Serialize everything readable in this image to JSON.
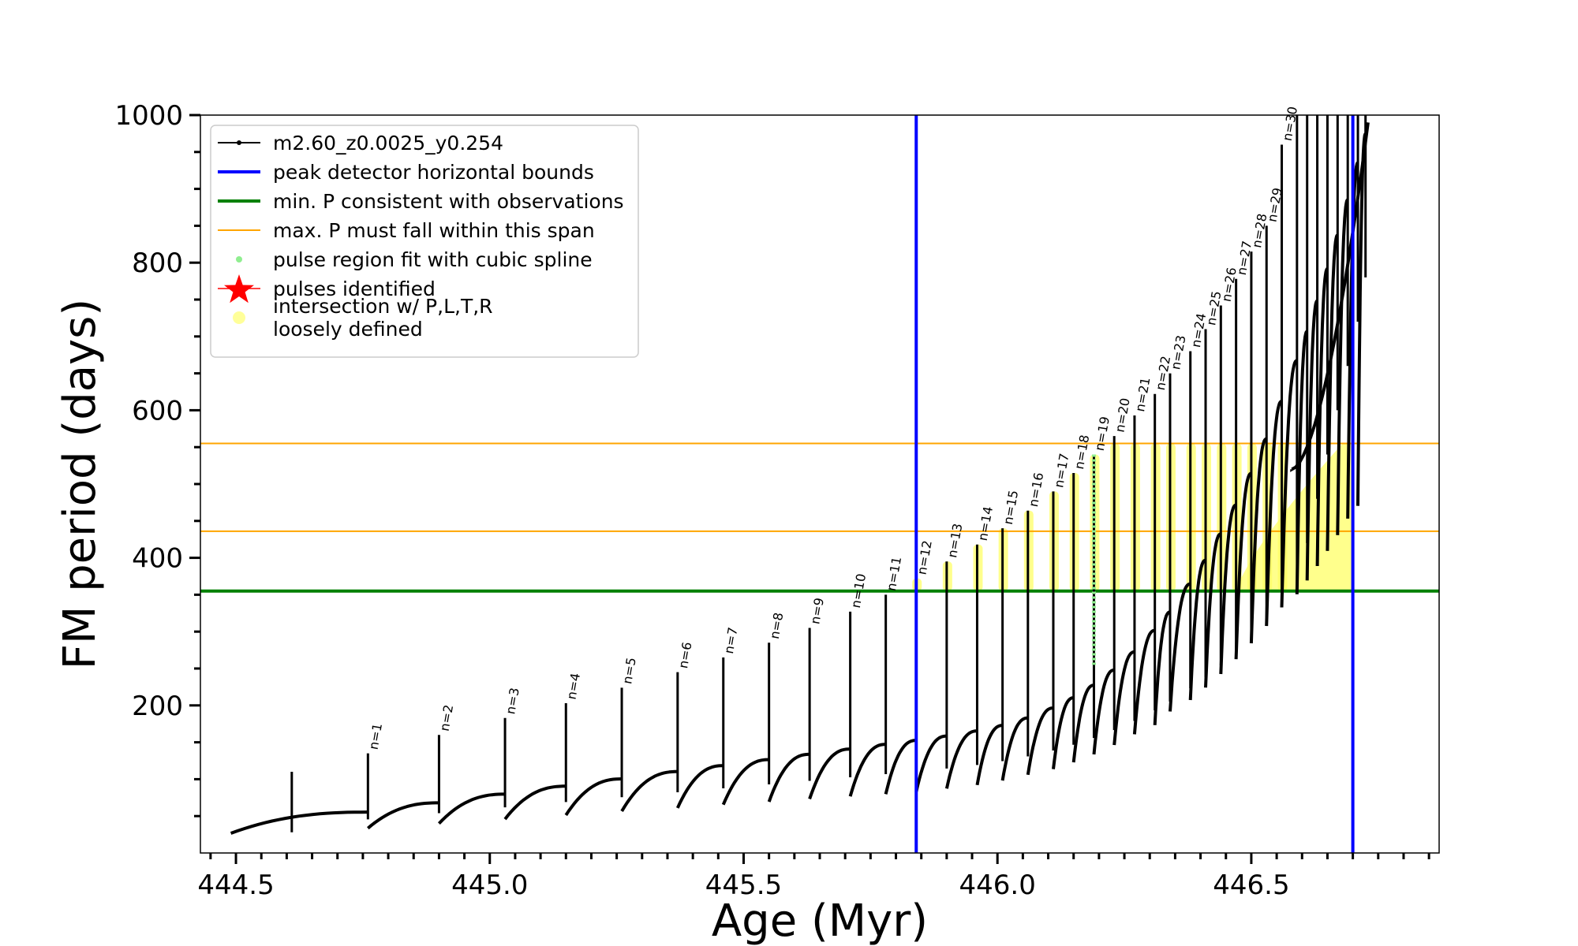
{
  "chart_data": {
    "type": "line",
    "xlabel": "Age (Myr)",
    "ylabel": "FM period (days)",
    "xlim": [
      444.43,
      446.87
    ],
    "ylim": [
      0,
      1000
    ],
    "x_ticks": [
      444.5,
      445.0,
      445.5,
      446.0,
      446.5
    ],
    "x_tick_labels": [
      "444.5",
      "445.0",
      "445.5",
      "446.0",
      "446.5"
    ],
    "y_ticks": [
      200,
      400,
      600,
      800,
      1000
    ],
    "y_tick_labels": [
      "200",
      "400",
      "600",
      "800",
      "1000"
    ],
    "legend": {
      "placement": "top-left",
      "entries": [
        {
          "label": "m2.60_z0.0025_y0.254",
          "color": "#000000",
          "marker": "line-dot"
        },
        {
          "label": "peak detector horizontal bounds",
          "color": "#0000ff",
          "marker": "line-thick"
        },
        {
          "label": "min. P consistent with observations",
          "color": "#008000",
          "marker": "line-thick"
        },
        {
          "label": "max. P must fall within this span",
          "color": "#ffa500",
          "marker": "line-thin"
        },
        {
          "label": "pulse region fit with cubic spline",
          "color": "#90ee90",
          "marker": "dot"
        },
        {
          "label": "pulses identified",
          "color": "#ff0000",
          "marker": "star"
        },
        {
          "label": "intersection w/ P,L,T,R",
          "label2": "loosely defined",
          "color": "#ffff99",
          "marker": "dot"
        }
      ]
    },
    "vlines": [
      {
        "x": 445.84,
        "color": "#0000ff",
        "name": "peak detector left bound"
      },
      {
        "x": 446.7,
        "color": "#0000ff",
        "name": "peak detector right bound"
      }
    ],
    "hlines": [
      {
        "y": 355,
        "color": "#008000",
        "name": "min P"
      },
      {
        "y": 436,
        "color": "#ffa500",
        "name": "max P lower"
      },
      {
        "y": 555,
        "color": "#ffa500",
        "name": "max P upper"
      }
    ],
    "pulses": [
      {
        "n": 1,
        "x": 444.76,
        "peak": 135
      },
      {
        "n": 2,
        "x": 444.9,
        "peak": 160
      },
      {
        "n": 3,
        "x": 445.03,
        "peak": 183
      },
      {
        "n": 4,
        "x": 445.15,
        "peak": 203
      },
      {
        "n": 5,
        "x": 445.26,
        "peak": 224
      },
      {
        "n": 6,
        "x": 445.37,
        "peak": 245
      },
      {
        "n": 7,
        "x": 445.46,
        "peak": 265
      },
      {
        "n": 8,
        "x": 445.55,
        "peak": 285
      },
      {
        "n": 9,
        "x": 445.63,
        "peak": 305
      },
      {
        "n": 10,
        "x": 445.71,
        "peak": 327
      },
      {
        "n": 11,
        "x": 445.78,
        "peak": 350
      },
      {
        "n": 12,
        "x": 445.84,
        "peak": 372
      },
      {
        "n": 13,
        "x": 445.9,
        "peak": 395
      },
      {
        "n": 14,
        "x": 445.96,
        "peak": 418
      },
      {
        "n": 15,
        "x": 446.01,
        "peak": 440
      },
      {
        "n": 16,
        "x": 446.06,
        "peak": 464
      },
      {
        "n": 17,
        "x": 446.11,
        "peak": 490
      },
      {
        "n": 18,
        "x": 446.15,
        "peak": 515
      },
      {
        "n": 19,
        "x": 446.19,
        "peak": 540
      },
      {
        "n": 20,
        "x": 446.23,
        "peak": 565
      },
      {
        "n": 21,
        "x": 446.27,
        "peak": 593
      },
      {
        "n": 22,
        "x": 446.31,
        "peak": 622
      },
      {
        "n": 23,
        "x": 446.34,
        "peak": 650
      },
      {
        "n": 24,
        "x": 446.38,
        "peak": 680
      },
      {
        "n": 25,
        "x": 446.41,
        "peak": 710
      },
      {
        "n": 26,
        "x": 446.44,
        "peak": 742
      },
      {
        "n": 27,
        "x": 446.47,
        "peak": 778
      },
      {
        "n": 28,
        "x": 446.5,
        "peak": 815
      },
      {
        "n": 29,
        "x": 446.53,
        "peak": 850
      },
      {
        "n": 30,
        "x": 446.56,
        "peak": 960
      }
    ],
    "extra_pulses_x": [
      446.59,
      446.61,
      446.63,
      446.65,
      446.67,
      446.69,
      446.71,
      446.725
    ],
    "start_age": 444.49,
    "start_period": 28
  }
}
